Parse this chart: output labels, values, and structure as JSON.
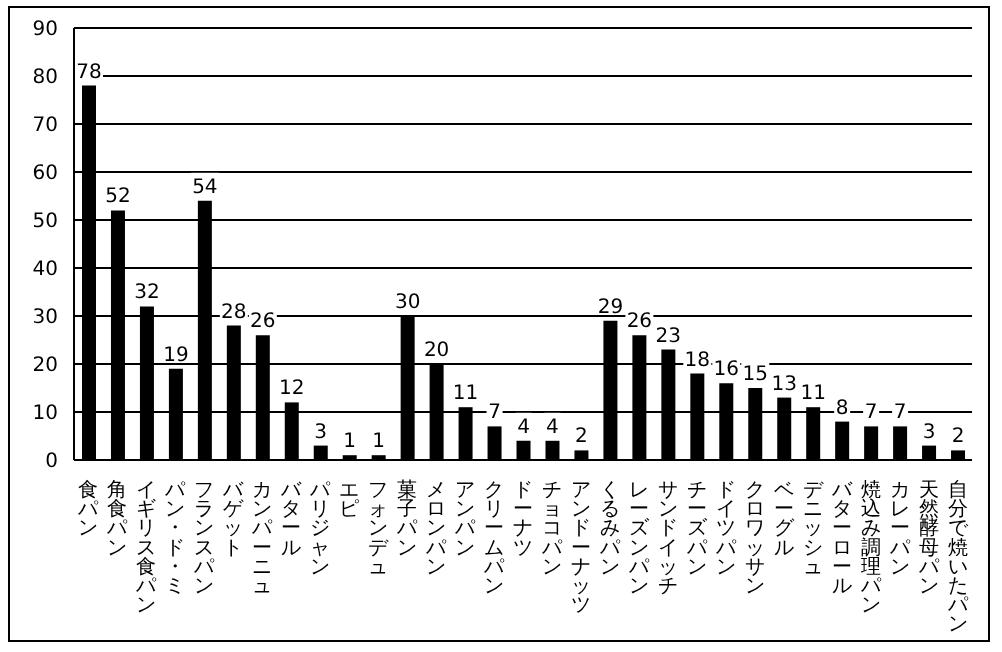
{
  "chart_data": {
    "type": "bar",
    "categories": [
      "食パン",
      "角食パン",
      "イギリス食パン",
      "パン・ド・ミ",
      "フランスパン",
      "バゲット",
      "カンパーニュ",
      "バタール",
      "パリジャン",
      "エピ",
      "フォンデュ",
      "菓子パン",
      "メロンパン",
      "アンパン",
      "クリームパン",
      "ドーナツ",
      "チョコパン",
      "アンドーナッツ",
      "くるみパン",
      "レーズンパン",
      "サンドイッチ",
      "チーズパン",
      "ドイツパン",
      "クロワッサン",
      "ベーグル",
      "デニッシュ",
      "バターロール",
      "焼込み調理パン",
      "カレーパン",
      "天然酵母パン",
      "自分で焼いたパン"
    ],
    "values": [
      78,
      52,
      32,
      19,
      54,
      28,
      26,
      12,
      3,
      1,
      1,
      30,
      20,
      11,
      7,
      4,
      4,
      2,
      29,
      26,
      23,
      18,
      16,
      15,
      13,
      11,
      8,
      7,
      7,
      3,
      2
    ],
    "color": "#000000",
    "ylim": [
      0,
      90
    ],
    "yticks": [
      0,
      10,
      20,
      30,
      40,
      50,
      60,
      70,
      80,
      90
    ],
    "grid": "y",
    "data_labels": true
  }
}
